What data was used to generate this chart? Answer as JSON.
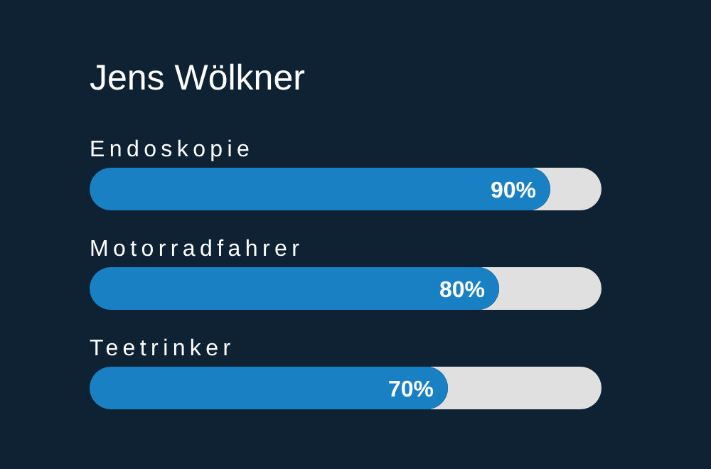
{
  "chart_data": {
    "type": "bar",
    "orientation": "horizontal",
    "title": "Jens Wölkner",
    "categories": [
      "Endoskopie",
      "Motorradfahrer",
      "Teetrinker"
    ],
    "values": [
      90,
      80,
      70
    ],
    "value_labels": [
      "90%",
      "80%",
      "70%"
    ],
    "color": "#1a80c4",
    "xlim": [
      0,
      100
    ],
    "tick_labels": "y"
  }
}
